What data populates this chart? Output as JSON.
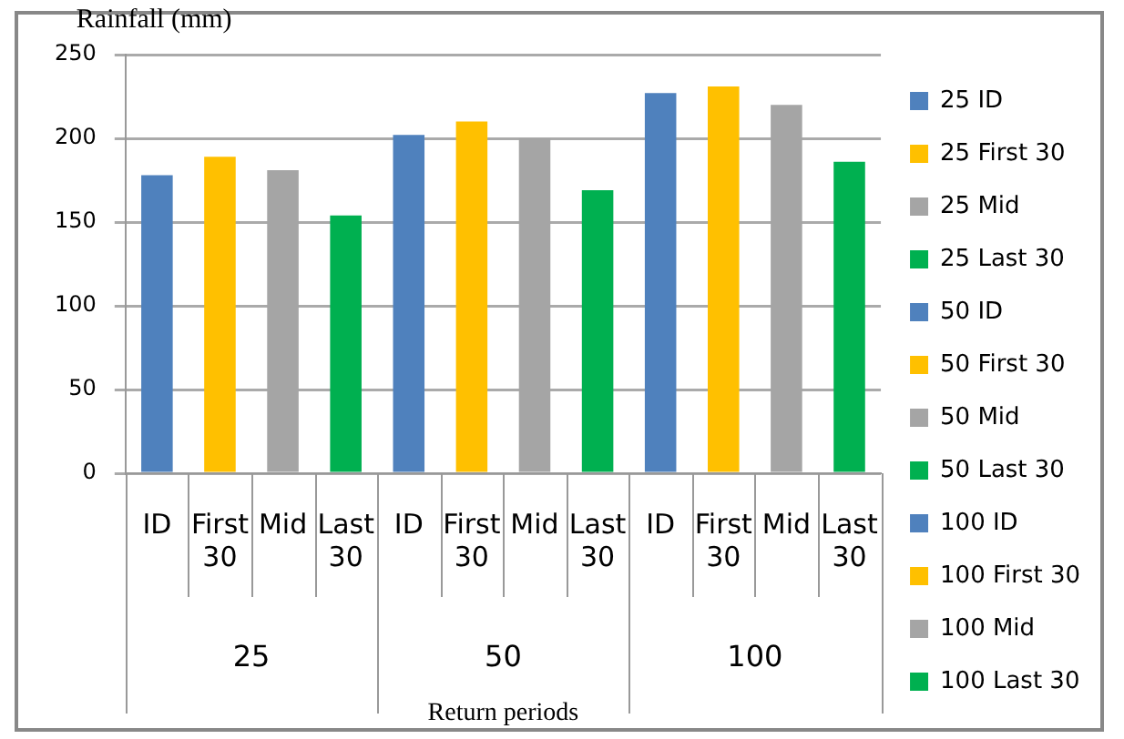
{
  "chart_data": {
    "type": "bar",
    "ylabel": "Rainfall (mm)",
    "xlabel": "Return periods",
    "categories": [
      "ID",
      "First 30",
      "Mid",
      "Last 30",
      "ID",
      "First 30",
      "Mid",
      "Last 30",
      "ID",
      "First 30",
      "Mid",
      "Last 30"
    ],
    "annotations": [
      "25",
      "50",
      "100"
    ],
    "ylim": [
      0,
      250
    ],
    "yticks": [
      0,
      50,
      100,
      150,
      200,
      250
    ],
    "grid": "y",
    "legend": "right",
    "series": [
      {
        "name": "25 ID",
        "color": "#4f81bd",
        "values": [
          178,
          null,
          null,
          null,
          null,
          null,
          null,
          null,
          null,
          null,
          null,
          null
        ]
      },
      {
        "name": "25 First 30",
        "color": "#ffc000",
        "values": [
          null,
          189,
          null,
          null,
          null,
          null,
          null,
          null,
          null,
          null,
          null,
          null
        ]
      },
      {
        "name": "25 Mid",
        "color": "#a5a5a5",
        "values": [
          null,
          null,
          181,
          null,
          null,
          null,
          null,
          null,
          null,
          null,
          null,
          null
        ]
      },
      {
        "name": "25 Last 30",
        "color": "#00b050",
        "values": [
          null,
          null,
          null,
          154,
          null,
          null,
          null,
          null,
          null,
          null,
          null,
          null
        ]
      },
      {
        "name": "50 ID",
        "color": "#4f81bd",
        "values": [
          null,
          null,
          null,
          null,
          202,
          null,
          null,
          null,
          null,
          null,
          null,
          null
        ]
      },
      {
        "name": "50 First 30",
        "color": "#ffc000",
        "values": [
          null,
          null,
          null,
          null,
          null,
          210,
          null,
          null,
          null,
          null,
          null,
          null
        ]
      },
      {
        "name": "50 Mid",
        "color": "#a5a5a5",
        "values": [
          null,
          null,
          null,
          null,
          null,
          null,
          200,
          null,
          null,
          null,
          null,
          null
        ]
      },
      {
        "name": "50 Last 30",
        "color": "#00b050",
        "values": [
          null,
          null,
          null,
          null,
          null,
          null,
          null,
          169,
          null,
          null,
          null,
          null
        ]
      },
      {
        "name": "100 ID",
        "color": "#4f81bd",
        "values": [
          null,
          null,
          null,
          null,
          null,
          null,
          null,
          null,
          227,
          null,
          null,
          null
        ]
      },
      {
        "name": "100 First 30",
        "color": "#ffc000",
        "values": [
          null,
          null,
          null,
          null,
          null,
          null,
          null,
          null,
          null,
          231,
          null,
          null
        ]
      },
      {
        "name": "100 Mid",
        "color": "#a5a5a5",
        "values": [
          null,
          null,
          null,
          null,
          null,
          null,
          null,
          null,
          null,
          null,
          220,
          null
        ]
      },
      {
        "name": "100 Last 30",
        "color": "#00b050",
        "values": [
          null,
          null,
          null,
          null,
          null,
          null,
          null,
          null,
          null,
          null,
          null,
          186
        ]
      }
    ]
  }
}
